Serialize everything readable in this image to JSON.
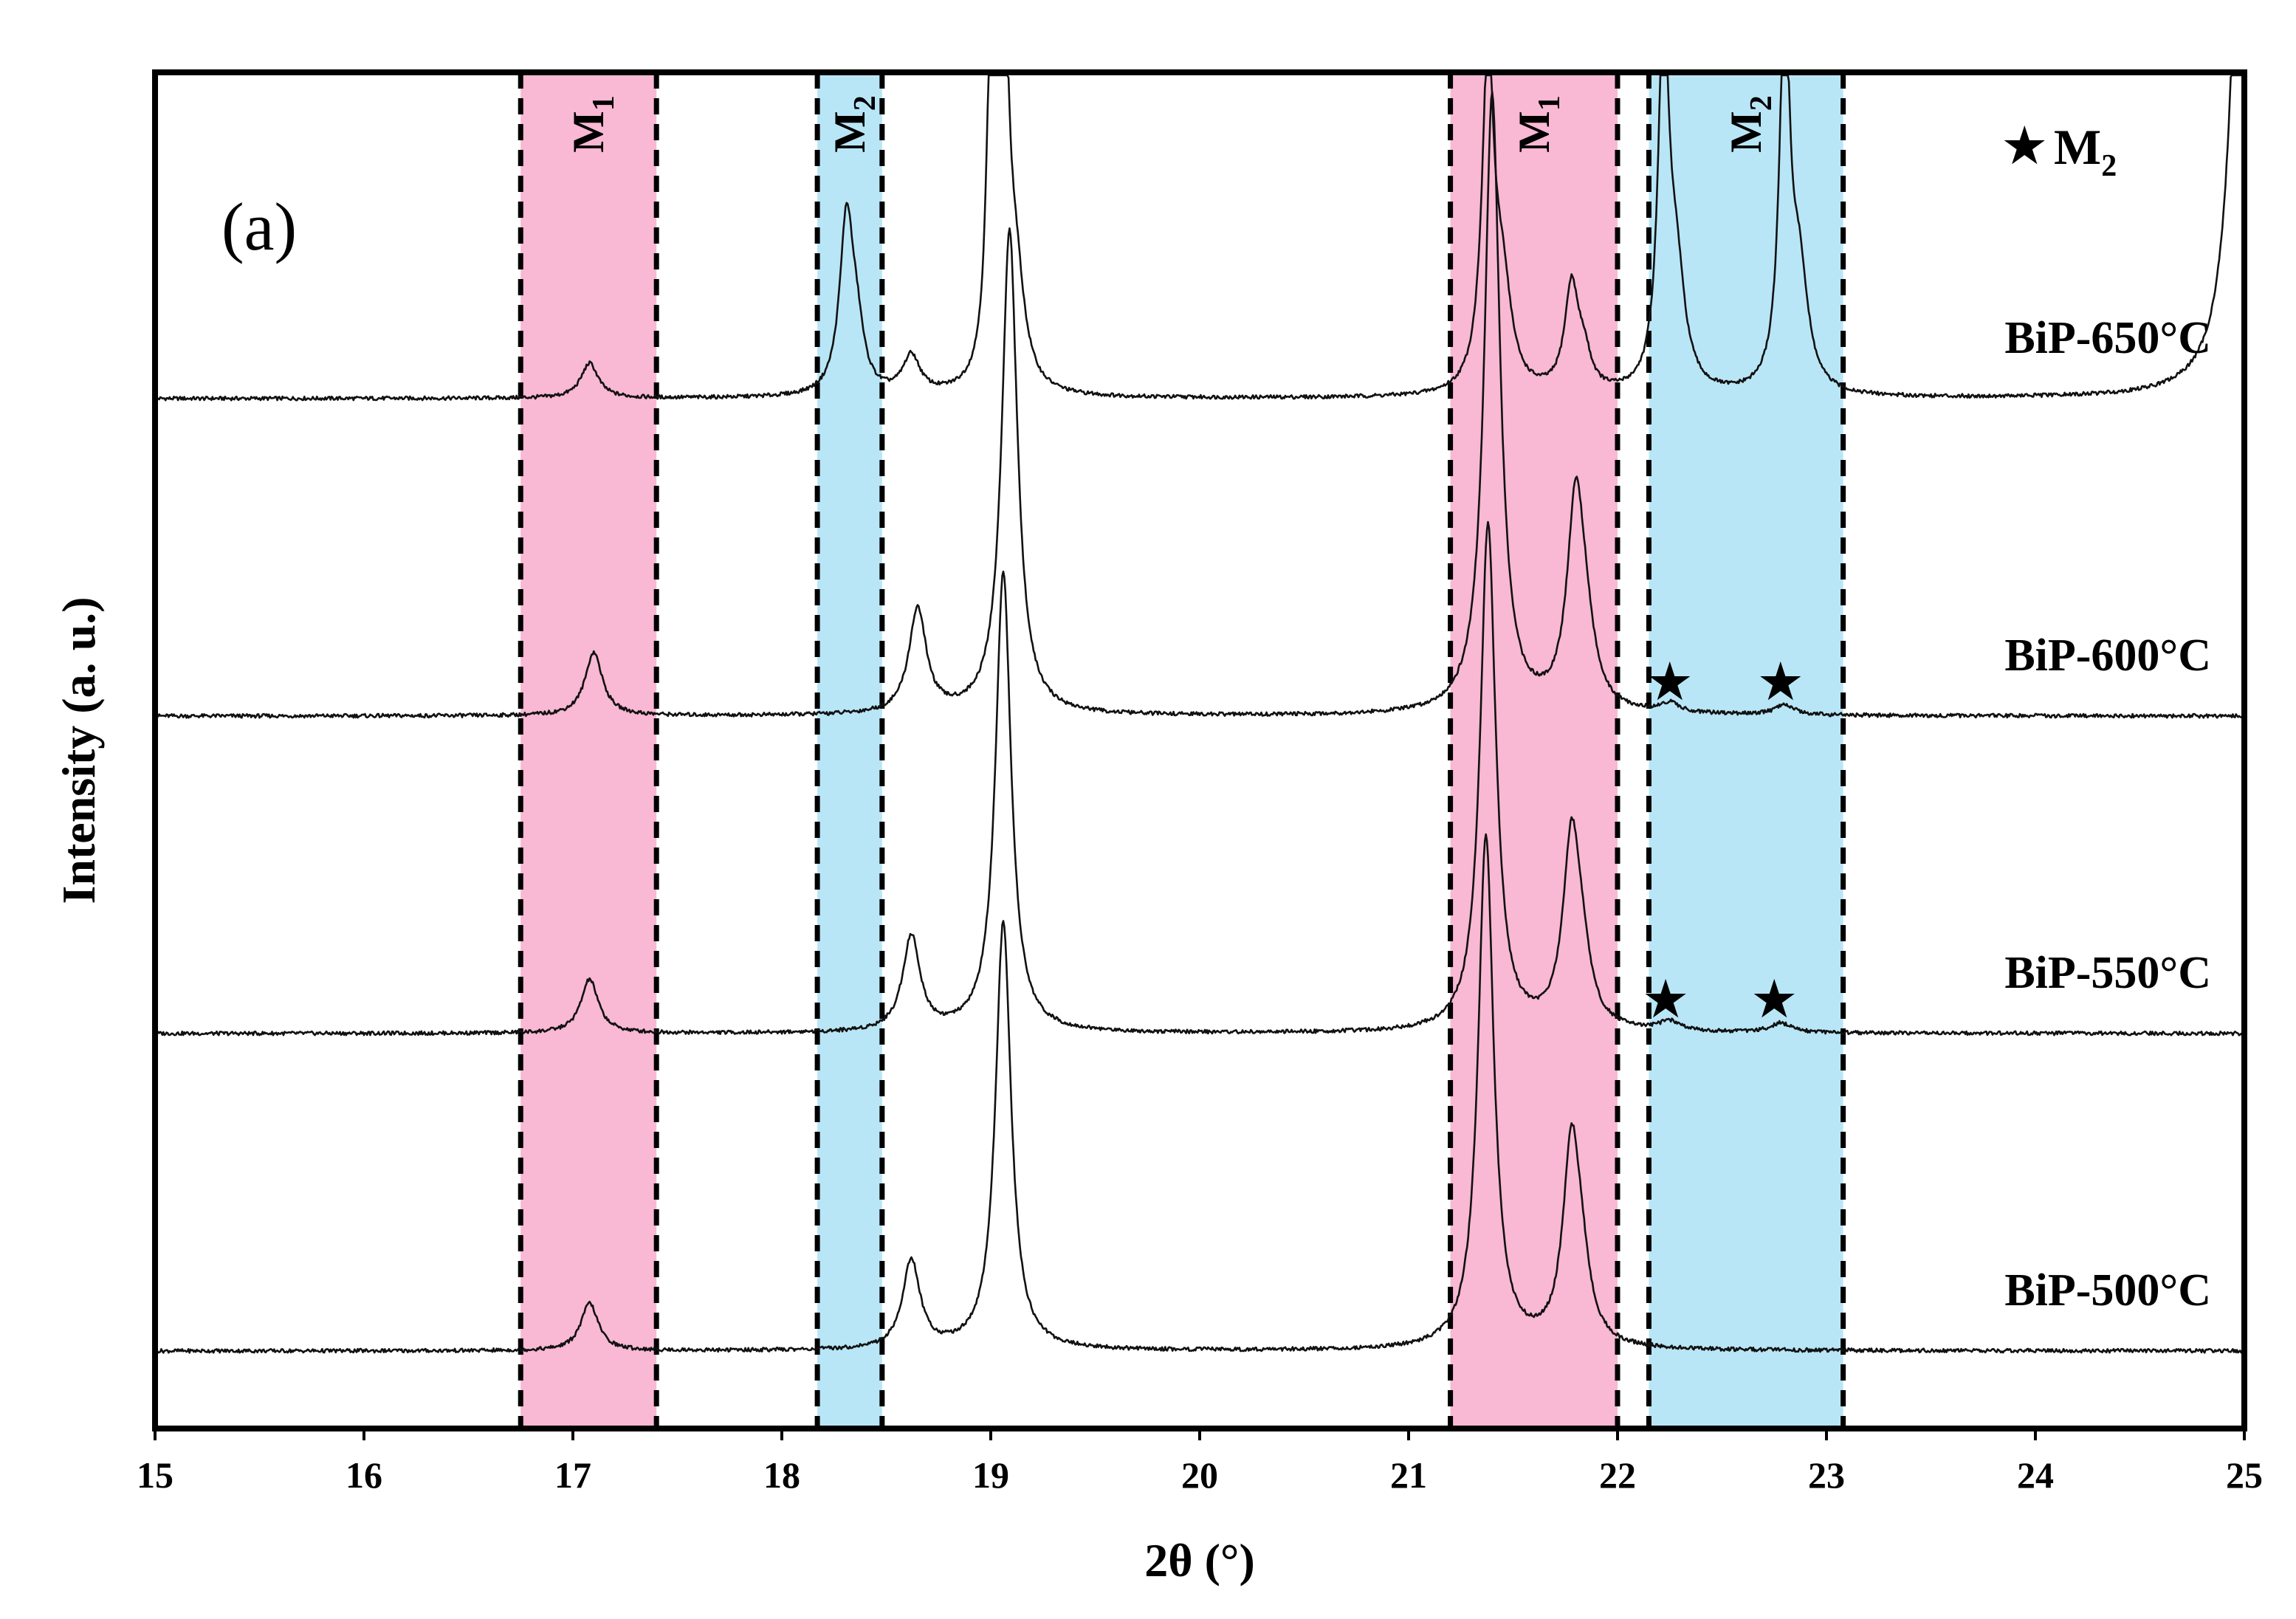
{
  "chart_data": {
    "type": "line",
    "panel_label": "(a)",
    "xlabel": "2θ (°)",
    "ylabel": "Intensity (a. u.)",
    "xlim": [
      15,
      25
    ],
    "x_ticks": [
      15,
      16,
      17,
      18,
      19,
      20,
      21,
      22,
      23,
      24,
      25
    ],
    "y_ticks": [],
    "grid": false,
    "colors": {
      "m1_band": "#f9b8d3",
      "m2_band": "#b9e6f6",
      "line": "#111111",
      "frame": "#000000"
    },
    "legend": {
      "text": "M",
      "subscript": "2",
      "symbol": "star",
      "position": "top-right"
    },
    "bands": [
      {
        "label": "M",
        "subscript": "1",
        "phase": "M1",
        "x_range": [
          16.75,
          17.4
        ]
      },
      {
        "label": "M",
        "subscript": "2",
        "phase": "M2",
        "x_range": [
          18.17,
          18.48
        ]
      },
      {
        "label": "M",
        "subscript": "1",
        "phase": "M1",
        "x_range": [
          21.2,
          22.0
        ]
      },
      {
        "label": "M",
        "subscript": "2",
        "phase": "M2",
        "x_range": [
          22.15,
          23.08
        ]
      }
    ],
    "series": [
      {
        "name": "BiP-650°C",
        "baseline": 1.0,
        "peaks": [
          {
            "x": 17.08,
            "height": 0.11,
            "width": 0.05
          },
          {
            "x": 18.31,
            "height": 0.55,
            "width": 0.04
          },
          {
            "x": 18.36,
            "height": 0.15,
            "width": 0.04
          },
          {
            "x": 18.62,
            "height": 0.12,
            "width": 0.05
          },
          {
            "x": 19.0,
            "height": 0.95,
            "width": 0.025
          },
          {
            "x": 19.06,
            "height": 1.23,
            "width": 0.03
          },
          {
            "x": 19.12,
            "height": 0.3,
            "width": 0.05
          },
          {
            "x": 21.38,
            "height": 1.05,
            "width": 0.035
          },
          {
            "x": 21.45,
            "height": 0.3,
            "width": 0.05
          },
          {
            "x": 21.78,
            "height": 0.33,
            "width": 0.04
          },
          {
            "x": 21.84,
            "height": 0.1,
            "width": 0.04
          },
          {
            "x": 22.22,
            "height": 1.15,
            "width": 0.03
          },
          {
            "x": 22.28,
            "height": 0.35,
            "width": 0.05
          },
          {
            "x": 22.8,
            "height": 1.18,
            "width": 0.03
          },
          {
            "x": 22.87,
            "height": 0.35,
            "width": 0.05
          },
          {
            "x": 25.0,
            "height": 2.2,
            "width": 0.06
          }
        ]
      },
      {
        "name": "BiP-600°C",
        "baseline": 0.0,
        "peaks": [
          {
            "x": 17.1,
            "height": 0.2,
            "width": 0.05
          },
          {
            "x": 18.65,
            "height": 0.33,
            "width": 0.05
          },
          {
            "x": 19.09,
            "height": 1.53,
            "width": 0.045
          },
          {
            "x": 21.4,
            "height": 1.95,
            "width": 0.045
          },
          {
            "x": 21.8,
            "height": 0.65,
            "width": 0.05
          },
          {
            "x": 21.85,
            "height": 0.15,
            "width": 0.05
          },
          {
            "x": 22.25,
            "height": 0.03,
            "width": 0.06
          },
          {
            "x": 22.8,
            "height": 0.03,
            "width": 0.06
          }
        ]
      },
      {
        "name": "BiP-550°C",
        "baseline": -1.0,
        "peaks": [
          {
            "x": 17.08,
            "height": 0.17,
            "width": 0.05
          },
          {
            "x": 18.62,
            "height": 0.3,
            "width": 0.05
          },
          {
            "x": 19.06,
            "height": 1.45,
            "width": 0.045
          },
          {
            "x": 21.38,
            "height": 1.6,
            "width": 0.045
          },
          {
            "x": 21.78,
            "height": 0.58,
            "width": 0.05
          },
          {
            "x": 21.83,
            "height": 0.15,
            "width": 0.05
          },
          {
            "x": 22.25,
            "height": 0.03,
            "width": 0.06
          },
          {
            "x": 22.78,
            "height": 0.03,
            "width": 0.06
          }
        ]
      },
      {
        "name": "BiP-500°C",
        "baseline": -2.0,
        "peaks": [
          {
            "x": 17.08,
            "height": 0.15,
            "width": 0.05
          },
          {
            "x": 18.62,
            "height": 0.28,
            "width": 0.05
          },
          {
            "x": 19.06,
            "height": 1.35,
            "width": 0.045
          },
          {
            "x": 21.37,
            "height": 1.62,
            "width": 0.045
          },
          {
            "x": 21.78,
            "height": 0.62,
            "width": 0.05
          },
          {
            "x": 21.83,
            "height": 0.15,
            "width": 0.05
          }
        ]
      }
    ],
    "markers": [
      {
        "series": "BiP-600°C",
        "x": 22.25,
        "symbol": "★"
      },
      {
        "series": "BiP-600°C",
        "x": 22.78,
        "symbol": "★"
      },
      {
        "series": "BiP-550°C",
        "x": 22.23,
        "symbol": "★"
      },
      {
        "series": "BiP-550°C",
        "x": 22.75,
        "symbol": "★"
      }
    ]
  }
}
